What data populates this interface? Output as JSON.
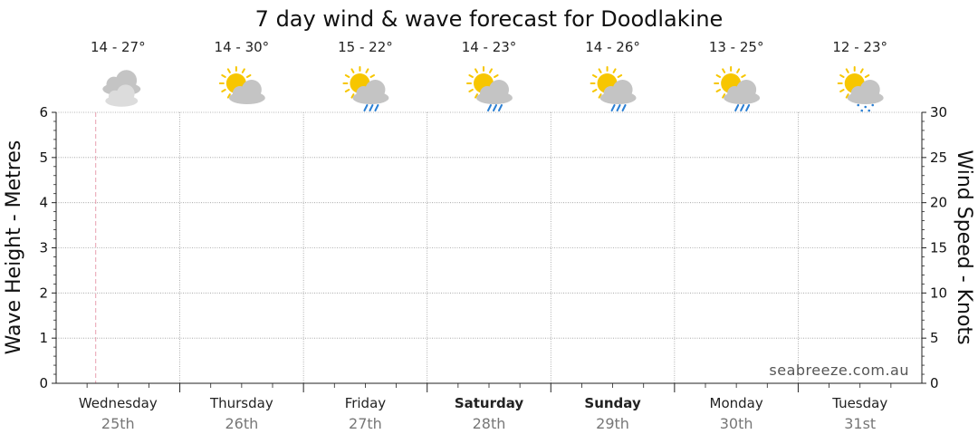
{
  "chart_data": {
    "type": "line",
    "title": "7 day wind & wave forecast for Doodlakine",
    "y_left": {
      "label": "Wave Height - Metres",
      "range": [
        0,
        6
      ],
      "ticks": [
        "0",
        "1",
        "2",
        "3",
        "4",
        "5",
        "6"
      ]
    },
    "y_right": {
      "label": "Wind Speed - Knots",
      "range": [
        0,
        30
      ],
      "ticks": [
        "0",
        "5",
        "10",
        "15",
        "20",
        "25",
        "30"
      ]
    },
    "grid": true,
    "days": [
      {
        "name": "Wednesday",
        "date": "25th",
        "temp": "14 - 27°",
        "icon": "cloudy-icon",
        "bold": false
      },
      {
        "name": "Thursday",
        "date": "26th",
        "temp": "14 - 30°",
        "icon": "partly-cloudy-icon",
        "bold": false
      },
      {
        "name": "Friday",
        "date": "27th",
        "temp": "15 - 22°",
        "icon": "showers-icon",
        "bold": false
      },
      {
        "name": "Saturday",
        "date": "28th",
        "temp": "14 - 23°",
        "icon": "showers-icon",
        "bold": true
      },
      {
        "name": "Sunday",
        "date": "29th",
        "temp": "14 - 26°",
        "icon": "showers-icon",
        "bold": true
      },
      {
        "name": "Monday",
        "date": "30th",
        "temp": "13 - 25°",
        "icon": "showers-icon",
        "bold": false
      },
      {
        "name": "Tuesday",
        "date": "31st",
        "temp": "12 - 23°",
        "icon": "drizzle-icon",
        "bold": false
      }
    ],
    "series": []
  },
  "watermark": "seabreeze.com.au",
  "colors": {
    "grid": "#9a9a9a",
    "now_line": "#e8a0b0",
    "sun": "#f7c600",
    "cloud": "#c4c4c4",
    "cloud_light": "#dcdcdc",
    "rain": "#2a7fd4"
  }
}
